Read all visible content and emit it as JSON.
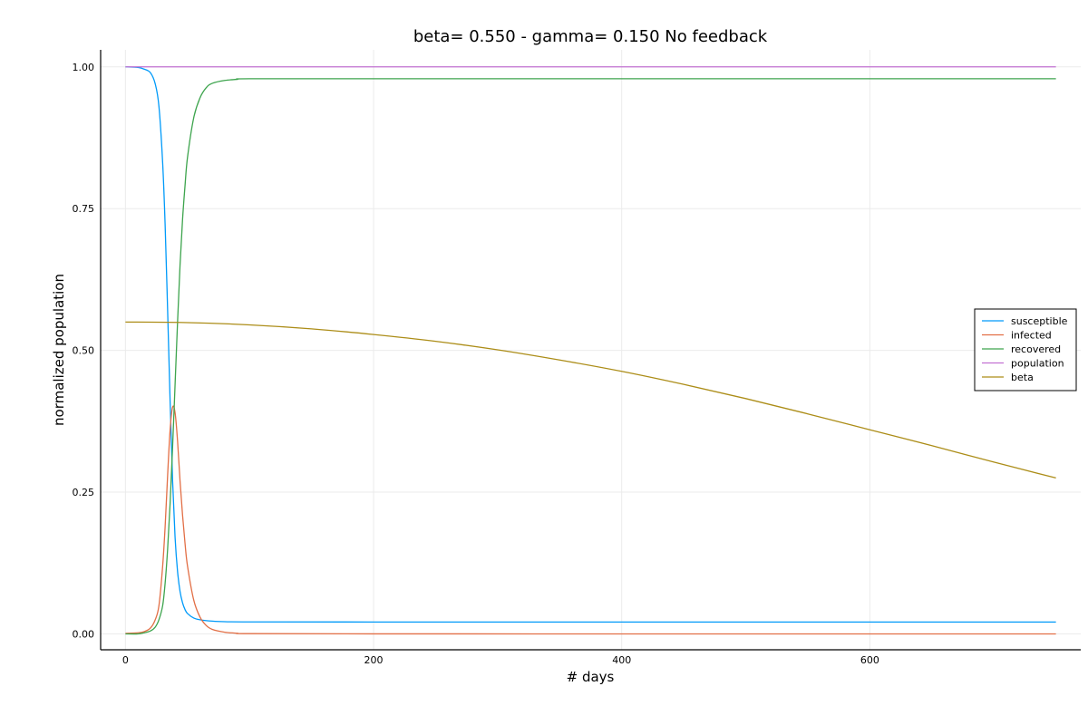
{
  "chart_data": {
    "type": "line",
    "title": "beta= 0.550 - gamma= 0.150 No feedback",
    "xlabel": "# days",
    "ylabel": "normalized population",
    "xlim": [
      -20,
      770
    ],
    "ylim": [
      -0.028,
      1.03
    ],
    "xticks": [
      0,
      200,
      400,
      600
    ],
    "xtick_labels": [
      "0",
      "200",
      "400",
      "600"
    ],
    "yticks": [
      0,
      0.25,
      0.5,
      0.75,
      1.0
    ],
    "ytick_labels": [
      "0.00",
      "0.25",
      "0.50",
      "0.75",
      "1.00"
    ],
    "grid": true,
    "legend_position": "right",
    "series": [
      {
        "name": "susceptible",
        "color": "#009af9",
        "x": [
          0,
          10,
          15,
          20,
          24,
          27,
          30,
          32,
          34,
          36,
          38,
          40,
          42,
          44,
          46,
          48,
          50,
          55,
          60,
          70,
          80,
          100,
          200,
          400,
          600,
          750
        ],
        "y": [
          1.0,
          0.999,
          0.996,
          0.99,
          0.97,
          0.93,
          0.83,
          0.72,
          0.57,
          0.41,
          0.27,
          0.17,
          0.11,
          0.075,
          0.055,
          0.043,
          0.036,
          0.028,
          0.025,
          0.0225,
          0.0215,
          0.0212,
          0.021,
          0.021,
          0.021,
          0.021
        ]
      },
      {
        "name": "infected",
        "color": "#e26f46",
        "x": [
          0,
          10,
          15,
          20,
          24,
          27,
          30,
          32,
          34,
          36,
          38,
          40,
          42,
          44,
          46,
          48,
          50,
          55,
          60,
          65,
          70,
          80,
          90,
          100,
          200,
          400,
          600,
          750
        ],
        "y": [
          0.001,
          0.002,
          0.004,
          0.01,
          0.025,
          0.05,
          0.12,
          0.19,
          0.28,
          0.36,
          0.4,
          0.39,
          0.34,
          0.27,
          0.21,
          0.16,
          0.12,
          0.06,
          0.03,
          0.015,
          0.008,
          0.003,
          0.0012,
          0.0005,
          0.0001,
          0.0,
          0.0,
          0.0
        ]
      },
      {
        "name": "recovered",
        "color": "#3da44d",
        "x": [
          0,
          10,
          15,
          20,
          24,
          27,
          30,
          32,
          34,
          36,
          38,
          40,
          42,
          44,
          46,
          48,
          50,
          55,
          60,
          65,
          70,
          80,
          90,
          100,
          200,
          400,
          600,
          750
        ],
        "y": [
          0.0,
          0.0,
          0.002,
          0.005,
          0.012,
          0.025,
          0.05,
          0.09,
          0.15,
          0.23,
          0.33,
          0.44,
          0.55,
          0.65,
          0.73,
          0.79,
          0.84,
          0.91,
          0.945,
          0.963,
          0.971,
          0.976,
          0.978,
          0.979,
          0.979,
          0.979,
          0.979,
          0.979
        ]
      },
      {
        "name": "population",
        "color": "#c271d2",
        "x": [
          0,
          750
        ],
        "y": [
          1.0,
          1.0
        ]
      },
      {
        "name": "beta",
        "color": "#ac8d18",
        "x": [
          0,
          50,
          100,
          150,
          200,
          250,
          300,
          350,
          400,
          450,
          500,
          550,
          600,
          650,
          700,
          750
        ],
        "y": [
          0.55,
          0.549,
          0.545,
          0.538,
          0.528,
          0.516,
          0.501,
          0.483,
          0.463,
          0.44,
          0.415,
          0.388,
          0.36,
          0.332,
          0.303,
          0.275
        ]
      }
    ]
  }
}
